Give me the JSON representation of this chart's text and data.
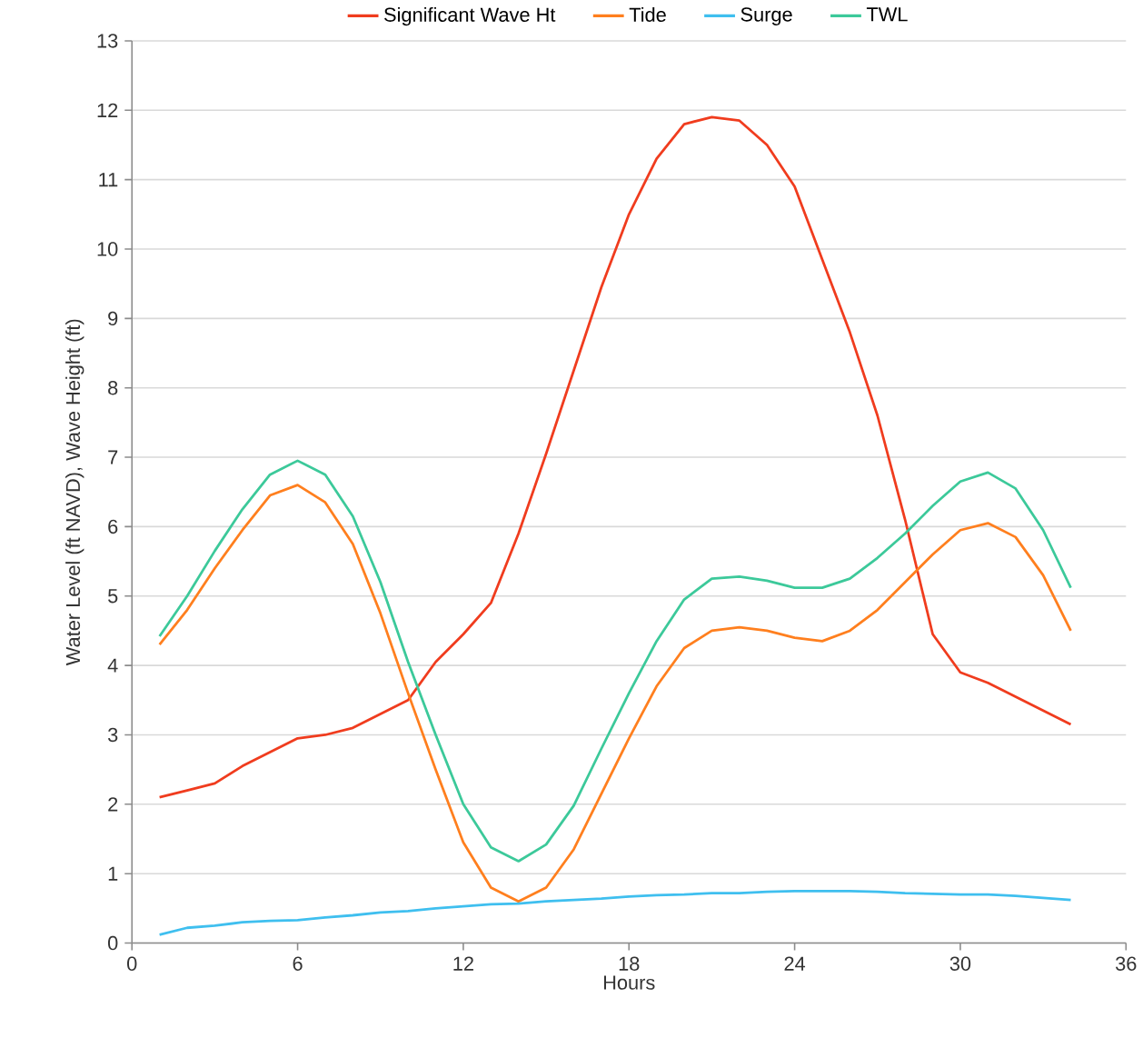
{
  "chart_data": {
    "type": "line",
    "xlabel": "Hours",
    "ylabel": "Water Level (ft NAVD), Wave Height (ft)",
    "x": [
      1,
      2,
      3,
      4,
      5,
      6,
      7,
      8,
      9,
      10,
      11,
      12,
      13,
      14,
      15,
      16,
      17,
      18,
      19,
      20,
      21,
      22,
      23,
      24,
      25,
      26,
      27,
      28,
      29,
      30,
      31,
      32,
      33,
      34
    ],
    "series": [
      {
        "name": "Significant Wave Ht",
        "color": "#f03c1e",
        "values": [
          2.1,
          2.2,
          2.3,
          2.55,
          2.75,
          2.95,
          3.0,
          3.1,
          3.3,
          3.5,
          4.05,
          4.45,
          4.9,
          5.9,
          7.05,
          8.25,
          9.45,
          10.5,
          11.3,
          11.8,
          11.9,
          11.85,
          11.5,
          10.9,
          9.85,
          8.8,
          7.6,
          6.1,
          4.45,
          3.9,
          3.75,
          3.55,
          3.35,
          3.15
        ]
      },
      {
        "name": "Tide",
        "color": "#ff7f1e",
        "values": [
          4.3,
          4.8,
          5.4,
          5.95,
          6.45,
          6.6,
          6.35,
          5.75,
          4.75,
          3.6,
          2.5,
          1.45,
          0.8,
          0.6,
          0.8,
          1.35,
          2.15,
          2.95,
          3.7,
          4.25,
          4.5,
          4.55,
          4.5,
          4.4,
          4.35,
          4.5,
          4.8,
          5.2,
          5.6,
          5.95,
          6.05,
          5.85,
          5.3,
          4.5
        ]
      },
      {
        "name": "Surge",
        "color": "#3fbfef",
        "values": [
          0.12,
          0.22,
          0.25,
          0.3,
          0.32,
          0.33,
          0.37,
          0.4,
          0.44,
          0.46,
          0.5,
          0.53,
          0.56,
          0.57,
          0.6,
          0.62,
          0.64,
          0.67,
          0.69,
          0.7,
          0.72,
          0.72,
          0.74,
          0.75,
          0.75,
          0.75,
          0.74,
          0.72,
          0.71,
          0.7,
          0.7,
          0.68,
          0.65,
          0.62
        ]
      },
      {
        "name": "TWL",
        "color": "#3cc99a",
        "values": [
          4.42,
          5.0,
          5.65,
          6.25,
          6.75,
          6.95,
          6.75,
          6.15,
          5.2,
          4.05,
          3.0,
          2.0,
          1.38,
          1.18,
          1.42,
          1.98,
          2.8,
          3.6,
          4.35,
          4.95,
          5.25,
          5.28,
          5.22,
          5.12,
          5.12,
          5.25,
          5.55,
          5.9,
          6.3,
          6.65,
          6.78,
          6.55,
          5.95,
          5.12
        ]
      }
    ],
    "xlim": [
      0,
      36
    ],
    "xticks": [
      0,
      6,
      12,
      18,
      24,
      30,
      36
    ],
    "ylim": [
      0,
      13
    ],
    "yticks": [
      0,
      1,
      2,
      3,
      4,
      5,
      6,
      7,
      8,
      9,
      10,
      11,
      12,
      13
    ],
    "grid": "y",
    "legend": "top",
    "marker": "none",
    "line_style": "solid"
  }
}
